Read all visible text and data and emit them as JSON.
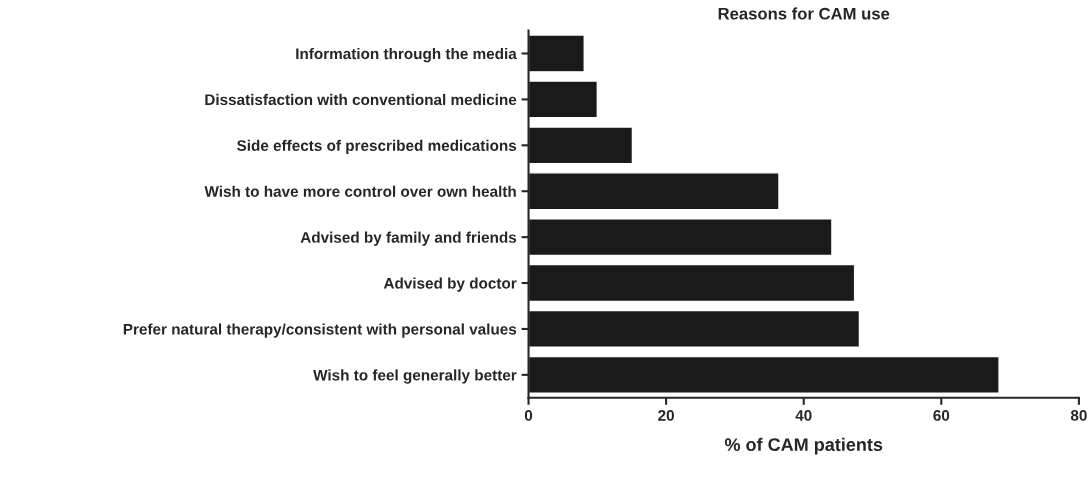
{
  "chart_data": {
    "type": "bar",
    "orientation": "horizontal",
    "title": "Reasons for CAM use",
    "xlabel": "% of CAM patients",
    "categories": [
      "Information through the media",
      "Dissatisfaction with conventional medicine",
      "Side effects of prescribed medications",
      "Wish to have more control over own health",
      "Advised by family and friends",
      "Advised by doctor",
      "Prefer natural therapy/consistent with personal values",
      "Wish to feel generally better"
    ],
    "values": [
      8.1,
      10.0,
      15.1,
      36.4,
      44.1,
      47.4,
      48.1,
      68.4
    ],
    "color": "#1a1a1a",
    "xlim": [
      0,
      80
    ],
    "xticks": [
      0,
      20,
      40,
      60,
      80
    ],
    "grid": false
  }
}
